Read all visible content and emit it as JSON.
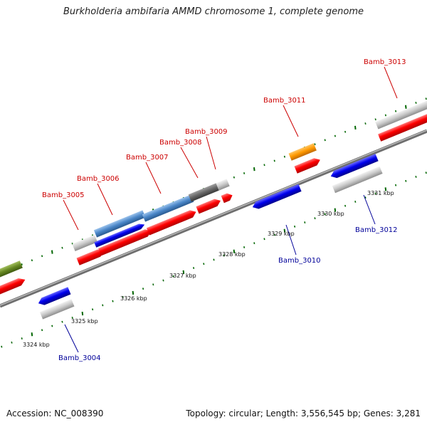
{
  "title": "Burkholderia ambifaria AMMD chromosome 1, complete genome",
  "footer": {
    "accession": "Accession: NC_008390",
    "summary": "Topology: circular; Length: 3,556,545 bp; Genes: 3,281"
  },
  "colors": {
    "forward_label": "#cc0000",
    "reverse_label": "#000099",
    "backbone": "#808080",
    "tick": "#006600",
    "red": "#ff0000",
    "blue": "#0000ee",
    "steel": "#4a86c8",
    "gray": "#c4c4c4",
    "dark": "#666666",
    "orange": "#ff9900",
    "olive": "#668822"
  },
  "scale_labels": [
    "3324 kbp",
    "3325 kbp",
    "3326 kbp",
    "3327 kbp",
    "3328 kbp",
    "3329 kbp",
    "3330 kbp",
    "3331 kbp"
  ],
  "gene_labels": {
    "forward": [
      "Bamb_3005",
      "Bamb_3006",
      "Bamb_3007",
      "Bamb_3008",
      "Bamb_3009",
      "Bamb_3011",
      "Bamb_3013"
    ],
    "reverse": [
      "Bamb_3004",
      "Bamb_3010",
      "Bamb_3012"
    ]
  }
}
